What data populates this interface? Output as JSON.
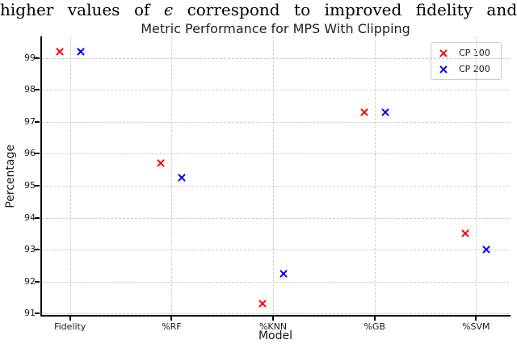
{
  "caption": {
    "words_before": [
      "higher",
      "values",
      "of"
    ],
    "epsilon": "ϵ",
    "words_after": [
      "correspond",
      "to",
      "improved",
      "fidelity",
      "and"
    ]
  },
  "chart_data": {
    "type": "scatter",
    "title": "Metric Performance for MPS With Clipping",
    "xlabel": "Model",
    "ylabel": "Percentage",
    "categories": [
      "Fidelity",
      "%RF",
      "%KNN",
      "%GB",
      "%SVM"
    ],
    "series": [
      {
        "name": "CP 100",
        "color": "#ff0000",
        "marker": "x",
        "values": [
          99.2,
          95.7,
          91.3,
          97.3,
          93.5
        ]
      },
      {
        "name": "CP 200",
        "color": "#0000ff",
        "marker": "x",
        "values": [
          99.2,
          95.25,
          92.25,
          97.3,
          93.0
        ]
      }
    ],
    "yticks": [
      91,
      92,
      93,
      94,
      95,
      96,
      97,
      98,
      99
    ],
    "ylim": [
      90.85,
      99.55
    ],
    "grid": "dashed",
    "grid_color": "#cccccc",
    "legend_position": "upper right"
  }
}
